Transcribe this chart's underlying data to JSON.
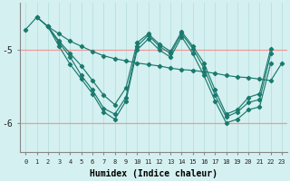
{
  "xlabel": "Humidex (Indice chaleur)",
  "ylabel": "",
  "bg_color": "#d5f0f0",
  "line_color": "#1a7a6e",
  "grid_color_h": "#ee9999",
  "grid_color_v": "#b8e0e0",
  "xlim": [
    -0.5,
    23.5
  ],
  "ylim": [
    -6.4,
    -4.35
  ],
  "yticks": [
    -6.0,
    -5.0
  ],
  "xticks": [
    0,
    1,
    2,
    3,
    4,
    5,
    6,
    7,
    8,
    9,
    10,
    11,
    12,
    13,
    14,
    15,
    16,
    17,
    18,
    19,
    20,
    21,
    22,
    23
  ],
  "lines": [
    [
      -4.72,
      -4.55,
      -4.68,
      -4.78,
      -4.88,
      -4.95,
      -5.02,
      -5.08,
      -5.12,
      -5.15,
      -5.18,
      -5.2,
      -5.22,
      -5.25,
      -5.27,
      -5.28,
      -5.3,
      -5.32,
      -5.35,
      -5.37,
      -5.38,
      -5.4,
      -5.42,
      -5.18
    ],
    [
      null,
      -4.55,
      -4.68,
      -4.95,
      -5.2,
      -5.4,
      -5.6,
      -5.85,
      -5.95,
      -5.7,
      -5.0,
      -4.85,
      -5.0,
      -5.1,
      -4.82,
      -5.05,
      -5.35,
      -5.7,
      -6.0,
      -5.95,
      -5.82,
      -5.78,
      -5.18,
      null
    ],
    [
      null,
      -4.55,
      -4.68,
      -4.9,
      -5.1,
      -5.35,
      -5.55,
      -5.8,
      -5.88,
      -5.65,
      -4.95,
      -4.8,
      -4.95,
      -5.05,
      -4.78,
      -4.98,
      -5.25,
      -5.62,
      -5.92,
      -5.85,
      -5.72,
      -5.68,
      -5.05,
      null
    ],
    [
      null,
      null,
      -4.68,
      -4.88,
      -5.05,
      -5.22,
      -5.42,
      -5.62,
      -5.75,
      -5.52,
      -4.9,
      -4.78,
      -4.92,
      -5.02,
      -4.75,
      -4.95,
      -5.18,
      -5.55,
      -5.88,
      -5.82,
      -5.65,
      -5.6,
      -4.98,
      null
    ]
  ]
}
